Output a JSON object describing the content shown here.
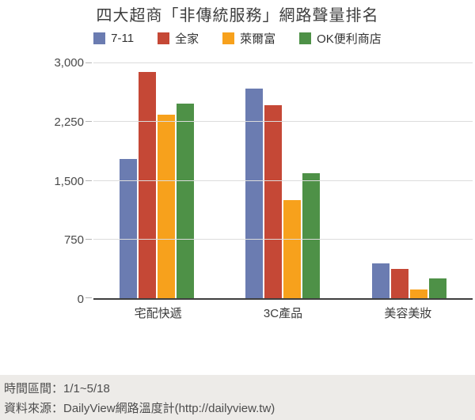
{
  "chart_data": {
    "type": "bar",
    "title": "四大超商「非傳統服務」網路聲量排名",
    "categories": [
      "宅配快遞",
      "3C產品",
      "美容美妝"
    ],
    "series": [
      {
        "name": "7-11",
        "color": "#6b7cb1",
        "values": [
          1775,
          2675,
          440
        ]
      },
      {
        "name": "全家",
        "color": "#c54836",
        "values": [
          2890,
          2465,
          375
        ]
      },
      {
        "name": "萊爾富",
        "color": "#f7a11c",
        "values": [
          2340,
          1250,
          110
        ]
      },
      {
        "name": "OK便利商店",
        "color": "#4e9147",
        "values": [
          2490,
          1600,
          250
        ]
      }
    ],
    "xlabel": "",
    "ylabel": "",
    "ylim": [
      0,
      3000
    ],
    "yticks": [
      0,
      750,
      1500,
      2250,
      3000
    ],
    "ytick_labels": [
      "0",
      "750",
      "1,500",
      "2,250",
      "3,000"
    ],
    "grid": true,
    "legend_position": "top"
  },
  "footer": {
    "line1": "時間區間：1/1~5/18",
    "line2": "資料來源：DailyView網路溫度計(http://dailyview.tw)"
  }
}
